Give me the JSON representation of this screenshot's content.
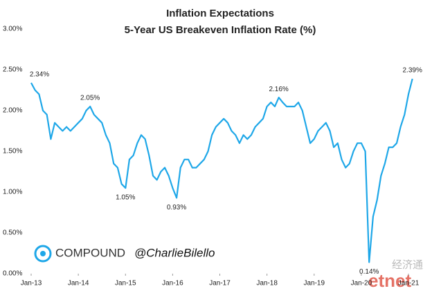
{
  "chart_data": {
    "type": "line",
    "title": "Inflation Expectations",
    "subtitle": "5-Year US Breakeven Inflation Rate (%)",
    "x": [
      "2013-01",
      "2013-02",
      "2013-03",
      "2013-04",
      "2013-05",
      "2013-06",
      "2013-07",
      "2013-08",
      "2013-09",
      "2013-10",
      "2013-11",
      "2013-12",
      "2014-01",
      "2014-02",
      "2014-03",
      "2014-04",
      "2014-05",
      "2014-06",
      "2014-07",
      "2014-08",
      "2014-09",
      "2014-10",
      "2014-11",
      "2014-12",
      "2015-01",
      "2015-02",
      "2015-03",
      "2015-04",
      "2015-05",
      "2015-06",
      "2015-07",
      "2015-08",
      "2015-09",
      "2015-10",
      "2015-11",
      "2015-12",
      "2016-01",
      "2016-02",
      "2016-03",
      "2016-04",
      "2016-05",
      "2016-06",
      "2016-07",
      "2016-08",
      "2016-09",
      "2016-10",
      "2016-11",
      "2016-12",
      "2017-01",
      "2017-02",
      "2017-03",
      "2017-04",
      "2017-05",
      "2017-06",
      "2017-07",
      "2017-08",
      "2017-09",
      "2017-10",
      "2017-11",
      "2017-12",
      "2018-01",
      "2018-02",
      "2018-03",
      "2018-04",
      "2018-05",
      "2018-06",
      "2018-07",
      "2018-08",
      "2018-09",
      "2018-10",
      "2018-11",
      "2018-12",
      "2019-01",
      "2019-02",
      "2019-03",
      "2019-04",
      "2019-05",
      "2019-06",
      "2019-07",
      "2019-08",
      "2019-09",
      "2019-10",
      "2019-11",
      "2019-12",
      "2020-01",
      "2020-02",
      "2020-03",
      "2020-04",
      "2020-05",
      "2020-06",
      "2020-07",
      "2020-08",
      "2020-09",
      "2020-10",
      "2020-11",
      "2020-12",
      "2021-01",
      "2021-02"
    ],
    "series": [
      {
        "name": "5-Year US Breakeven Inflation Rate",
        "color": "#1ea7e8",
        "values": [
          2.34,
          2.25,
          2.2,
          2.0,
          1.95,
          1.65,
          1.85,
          1.8,
          1.75,
          1.8,
          1.75,
          1.8,
          1.85,
          1.9,
          2.0,
          2.05,
          1.95,
          1.9,
          1.85,
          1.7,
          1.6,
          1.35,
          1.3,
          1.1,
          1.05,
          1.4,
          1.45,
          1.6,
          1.7,
          1.65,
          1.45,
          1.2,
          1.15,
          1.25,
          1.3,
          1.2,
          1.05,
          0.93,
          1.3,
          1.4,
          1.4,
          1.3,
          1.3,
          1.35,
          1.4,
          1.5,
          1.7,
          1.8,
          1.85,
          1.9,
          1.85,
          1.75,
          1.7,
          1.6,
          1.7,
          1.65,
          1.7,
          1.8,
          1.85,
          1.9,
          2.05,
          2.1,
          2.05,
          2.16,
          2.1,
          2.05,
          2.05,
          2.05,
          2.1,
          2.0,
          1.8,
          1.6,
          1.65,
          1.75,
          1.8,
          1.85,
          1.75,
          1.55,
          1.6,
          1.4,
          1.3,
          1.35,
          1.5,
          1.6,
          1.6,
          1.5,
          0.14,
          0.7,
          0.9,
          1.2,
          1.35,
          1.55,
          1.55,
          1.6,
          1.8,
          1.95,
          2.2,
          2.39
        ],
        "value_labels": [
          "2.34%",
          null,
          null,
          null,
          null,
          null,
          null,
          null,
          null,
          null,
          null,
          null,
          null,
          null,
          null,
          "2.05%",
          null,
          null,
          null,
          null,
          null,
          null,
          null,
          null,
          "1.05%",
          null,
          null,
          null,
          null,
          null,
          null,
          null,
          null,
          null,
          null,
          null,
          null,
          "0.93%",
          null,
          null,
          null,
          null,
          null,
          null,
          null,
          null,
          null,
          null,
          null,
          null,
          null,
          null,
          null,
          null,
          null,
          null,
          null,
          null,
          null,
          null,
          null,
          null,
          null,
          "2.16%",
          null,
          null,
          null,
          null,
          null,
          null,
          null,
          null,
          null,
          null,
          null,
          null,
          null,
          null,
          null,
          null,
          null,
          null,
          null,
          null,
          null,
          null,
          "0.14%",
          null,
          null,
          null,
          null,
          null,
          null,
          null,
          null,
          null,
          null,
          "2.39%"
        ]
      }
    ],
    "xlim": [
      "2013-01",
      "2021-02"
    ],
    "xticks": [
      {
        "value": "2013-01",
        "label": "Jan-13"
      },
      {
        "value": "2014-01",
        "label": "Jan-14"
      },
      {
        "value": "2015-01",
        "label": "Jan-15"
      },
      {
        "value": "2016-01",
        "label": "Jan-16"
      },
      {
        "value": "2017-01",
        "label": "Jan-17"
      },
      {
        "value": "2018-01",
        "label": "Jan-18"
      },
      {
        "value": "2019-01",
        "label": "Jan-19"
      },
      {
        "value": "2020-01",
        "label": "Jan-20"
      },
      {
        "value": "2021-01",
        "label": "Jan-21"
      }
    ],
    "ylim": [
      0,
      3
    ],
    "yticks": [
      {
        "value": 0,
        "label": "0.00%"
      },
      {
        "value": 0.5,
        "label": "0.50%"
      },
      {
        "value": 1,
        "label": "1.00%"
      },
      {
        "value": 1.5,
        "label": "1.50%"
      },
      {
        "value": 2,
        "label": "2.00%"
      },
      {
        "value": 2.5,
        "label": "2.50%"
      },
      {
        "value": 3,
        "label": "3.00%"
      }
    ],
    "branding": [
      "COMPOUND",
      "@CharlieBilello"
    ],
    "watermark": [
      "经济通",
      "etnet"
    ]
  }
}
